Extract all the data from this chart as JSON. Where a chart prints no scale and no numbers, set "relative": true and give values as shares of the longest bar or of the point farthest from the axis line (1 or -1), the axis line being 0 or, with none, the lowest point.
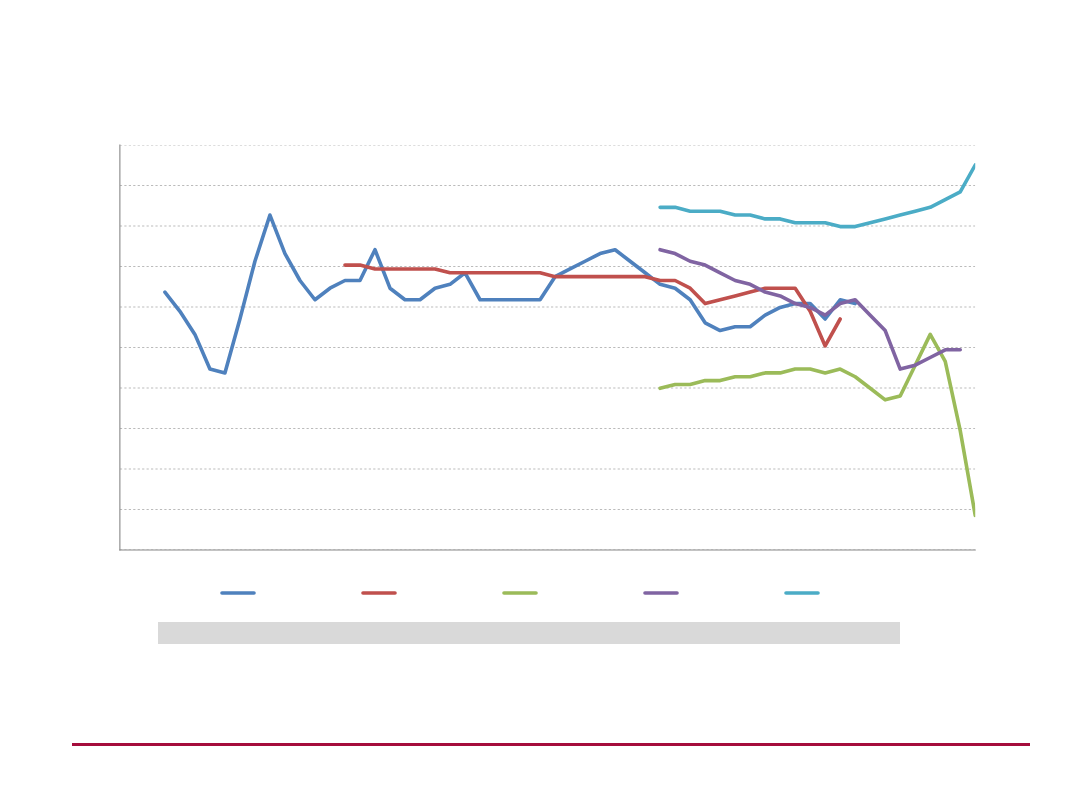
{
  "chart_data": {
    "type": "line",
    "relative": true,
    "grid": "y",
    "marker": "none",
    "line_style": "solid",
    "categories": [
      null,
      null,
      null,
      null,
      null,
      null,
      null,
      null,
      null,
      null,
      null,
      null,
      null,
      null,
      null,
      null,
      null,
      null,
      null,
      null,
      null,
      null,
      null,
      null,
      null,
      null,
      null,
      null,
      null,
      null,
      null,
      null,
      null,
      null,
      null,
      null,
      null,
      null,
      null,
      null,
      null,
      null,
      null,
      null,
      null,
      null,
      null,
      null,
      null,
      null,
      null,
      null,
      null,
      null,
      null,
      null,
      null,
      null
    ],
    "series": [
      {
        "color": "#4f81bd",
        "values": [
          null,
          null,
          null,
          0.67,
          0.62,
          0.56,
          0.47,
          0.46,
          0.6,
          0.75,
          0.87,
          0.77,
          0.7,
          0.65,
          0.68,
          0.7,
          0.7,
          0.78,
          0.68,
          0.65,
          0.65,
          0.68,
          0.69,
          0.72,
          0.65,
          0.65,
          0.65,
          0.65,
          0.65,
          0.71,
          0.73,
          0.75,
          0.77,
          0.78,
          0.75,
          0.72,
          0.69,
          0.68,
          0.65,
          0.59,
          0.57,
          0.58,
          0.58,
          0.61,
          0.63,
          0.64,
          0.64,
          0.6,
          0.65,
          0.64,
          null,
          null,
          null,
          null,
          null,
          null,
          null,
          null
        ]
      },
      {
        "color": "#c0504d",
        "values": [
          null,
          null,
          null,
          null,
          null,
          null,
          null,
          null,
          null,
          null,
          null,
          null,
          null,
          null,
          null,
          0.74,
          0.74,
          0.73,
          0.73,
          0.73,
          0.73,
          0.73,
          0.72,
          0.72,
          0.72,
          0.72,
          0.72,
          0.72,
          0.72,
          0.71,
          0.71,
          0.71,
          0.71,
          0.71,
          0.71,
          0.71,
          0.7,
          0.7,
          0.68,
          0.64,
          0.65,
          0.66,
          0.67,
          0.68,
          0.68,
          0.68,
          0.62,
          0.53,
          0.6,
          null,
          null,
          null,
          null,
          null,
          null,
          null,
          null,
          null
        ]
      },
      {
        "color": "#9bbb59",
        "values": [
          null,
          null,
          null,
          null,
          null,
          null,
          null,
          null,
          null,
          null,
          null,
          null,
          null,
          null,
          null,
          null,
          null,
          null,
          null,
          null,
          null,
          null,
          null,
          null,
          null,
          null,
          null,
          null,
          null,
          null,
          null,
          null,
          null,
          null,
          null,
          null,
          0.42,
          0.43,
          0.43,
          0.44,
          0.44,
          0.45,
          0.45,
          0.46,
          0.46,
          0.47,
          0.47,
          0.46,
          0.47,
          0.45,
          0.42,
          0.39,
          0.4,
          0.48,
          0.56,
          0.49,
          0.31,
          0.09
        ]
      },
      {
        "color": "#8064a2",
        "values": [
          null,
          null,
          null,
          null,
          null,
          null,
          null,
          null,
          null,
          null,
          null,
          null,
          null,
          null,
          null,
          null,
          null,
          null,
          null,
          null,
          null,
          null,
          null,
          null,
          null,
          null,
          null,
          null,
          null,
          null,
          null,
          null,
          null,
          null,
          null,
          null,
          0.78,
          0.77,
          0.75,
          0.74,
          0.72,
          0.7,
          0.69,
          0.67,
          0.66,
          0.64,
          0.63,
          0.61,
          0.64,
          0.65,
          0.61,
          0.57,
          0.47,
          0.48,
          0.5,
          0.52,
          0.52,
          null
        ]
      },
      {
        "color": "#4bacc6",
        "values": [
          null,
          null,
          null,
          null,
          null,
          null,
          null,
          null,
          null,
          null,
          null,
          null,
          null,
          null,
          null,
          null,
          null,
          null,
          null,
          null,
          null,
          null,
          null,
          null,
          null,
          null,
          null,
          null,
          null,
          null,
          null,
          null,
          null,
          null,
          null,
          null,
          0.89,
          0.89,
          0.88,
          0.88,
          0.88,
          0.87,
          0.87,
          0.86,
          0.86,
          0.85,
          0.85,
          0.85,
          0.84,
          0.84,
          0.85,
          0.86,
          0.87,
          0.88,
          0.89,
          0.91,
          0.93,
          1.0
        ]
      }
    ]
  }
}
